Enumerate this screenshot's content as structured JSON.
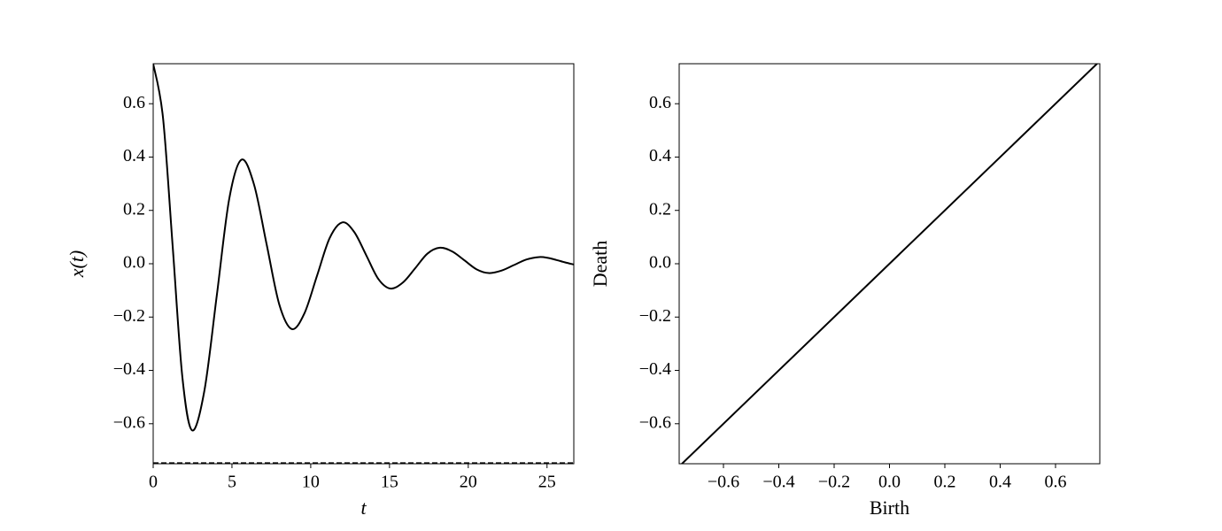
{
  "chart_data": [
    {
      "type": "line",
      "xlabel": "t",
      "ylabel": "x(t)",
      "x": [
        0,
        0.62,
        1.24,
        1.85,
        2.47,
        3.25,
        4.04,
        4.82,
        5.6,
        6.4,
        7.2,
        8.0,
        8.8,
        9.6,
        10.4,
        11.2,
        12.0,
        12.76,
        13.53,
        14.29,
        15.05,
        15.84,
        16.63,
        17.41,
        18.2,
        18.98,
        19.75,
        20.53,
        21.3,
        22.1,
        22.9,
        23.7,
        24.5,
        25.05,
        25.6,
        26.15,
        26.7
      ],
      "series": [
        {
          "color": "#000000",
          "values": [
            0.75,
            0.549,
            0.0625,
            -0.424,
            -0.625,
            -0.476,
            -0.118,
            0.241,
            0.39,
            0.297,
            0.073,
            -0.152,
            -0.245,
            -0.186,
            -0.045,
            0.096,
            0.155,
            0.119,
            0.031,
            -0.057,
            -0.093,
            -0.071,
            -0.017,
            0.038,
            0.06,
            0.046,
            0.013,
            -0.021,
            -0.035,
            -0.026,
            -0.005,
            0.016,
            0.025,
            0.022,
            0.014,
            0.005,
            -0.003
          ]
        }
      ],
      "hlines": [
        {
          "y": -0.75,
          "style": "dashed",
          "color": "#000000"
        }
      ],
      "xlim": [
        0,
        26.7
      ],
      "ylim": [
        -0.75,
        0.75
      ],
      "xticks": [
        0,
        5,
        10,
        15,
        20,
        25
      ],
      "yticks": [
        {
          "value": -0.6,
          "label": "−0.6"
        },
        {
          "value": -0.4,
          "label": "−0.4"
        },
        {
          "value": -0.2,
          "label": "−0.2"
        },
        {
          "value": 0,
          "label": "0.0"
        },
        0.2,
        0.4,
        0.6
      ]
    },
    {
      "type": "line",
      "xlabel": "Birth",
      "ylabel": "Death",
      "x": [
        -0.76,
        0.76
      ],
      "series": [
        {
          "color": "#000000",
          "values": [
            -0.76,
            0.76
          ]
        }
      ],
      "xlim": [
        -0.76,
        0.76
      ],
      "ylim": [
        -0.75,
        0.75
      ],
      "xticks": [
        {
          "value": -0.6,
          "label": "−0.6"
        },
        {
          "value": -0.4,
          "label": "−0.4"
        },
        {
          "value": -0.2,
          "label": "−0.2"
        },
        {
          "value": 0,
          "label": "0.0"
        },
        0.2,
        0.4,
        0.6
      ],
      "yticks": [
        {
          "value": -0.6,
          "label": "−0.6"
        },
        {
          "value": -0.4,
          "label": "−0.4"
        },
        {
          "value": -0.2,
          "label": "−0.2"
        },
        {
          "value": 0,
          "label": "0.0"
        },
        0.2,
        0.4,
        0.6
      ]
    }
  ]
}
